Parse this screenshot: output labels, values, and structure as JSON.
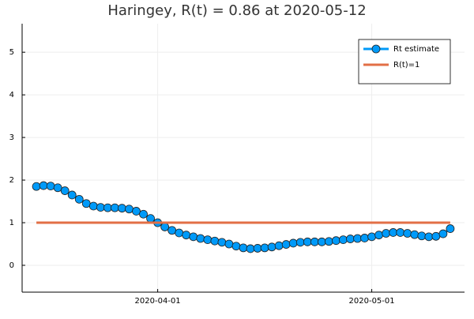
{
  "chart_data": {
    "type": "line",
    "title": "Haringey, R(t) = 0.86 at 2020-05-12",
    "series": [
      {
        "name": "Rt estimate",
        "color": "#009af9",
        "markers": true,
        "x": [
          "2020-03-15",
          "2020-03-16",
          "2020-03-17",
          "2020-03-18",
          "2020-03-19",
          "2020-03-20",
          "2020-03-21",
          "2020-03-22",
          "2020-03-23",
          "2020-03-24",
          "2020-03-25",
          "2020-03-26",
          "2020-03-27",
          "2020-03-28",
          "2020-03-29",
          "2020-03-30",
          "2020-03-31",
          "2020-04-01",
          "2020-04-02",
          "2020-04-03",
          "2020-04-04",
          "2020-04-05",
          "2020-04-06",
          "2020-04-07",
          "2020-04-08",
          "2020-04-09",
          "2020-04-10",
          "2020-04-11",
          "2020-04-12",
          "2020-04-13",
          "2020-04-14",
          "2020-04-15",
          "2020-04-16",
          "2020-04-17",
          "2020-04-18",
          "2020-04-19",
          "2020-04-20",
          "2020-04-21",
          "2020-04-22",
          "2020-04-23",
          "2020-04-24",
          "2020-04-25",
          "2020-04-26",
          "2020-04-27",
          "2020-04-28",
          "2020-04-29",
          "2020-04-30",
          "2020-05-01",
          "2020-05-02",
          "2020-05-03",
          "2020-05-04",
          "2020-05-05",
          "2020-05-06",
          "2020-05-07",
          "2020-05-08",
          "2020-05-09",
          "2020-05-10",
          "2020-05-11",
          "2020-05-12"
        ],
        "values": [
          1.85,
          1.87,
          1.86,
          1.82,
          1.75,
          1.65,
          1.55,
          1.45,
          1.39,
          1.36,
          1.35,
          1.35,
          1.34,
          1.32,
          1.27,
          1.2,
          1.1,
          1.0,
          0.9,
          0.82,
          0.76,
          0.71,
          0.67,
          0.63,
          0.6,
          0.57,
          0.54,
          0.5,
          0.45,
          0.41,
          0.39,
          0.4,
          0.41,
          0.43,
          0.46,
          0.49,
          0.52,
          0.54,
          0.55,
          0.55,
          0.55,
          0.56,
          0.58,
          0.6,
          0.62,
          0.63,
          0.64,
          0.67,
          0.71,
          0.75,
          0.77,
          0.77,
          0.75,
          0.72,
          0.69,
          0.67,
          0.68,
          0.74,
          0.86
        ]
      },
      {
        "name": "R(t)=1",
        "color": "#e26f46",
        "markers": false,
        "x": [
          "2020-03-15",
          "2020-05-12"
        ],
        "values": [
          1,
          1
        ]
      }
    ],
    "xlim": [
      "2020-03-13",
      "2020-05-14"
    ],
    "xticks": [
      "2020-04-01",
      "2020-05-01"
    ],
    "ylim": [
      -0.63,
      5.67
    ],
    "yticks": [
      0,
      1,
      2,
      3,
      4,
      5
    ],
    "grid": true,
    "legend": "top-right"
  }
}
